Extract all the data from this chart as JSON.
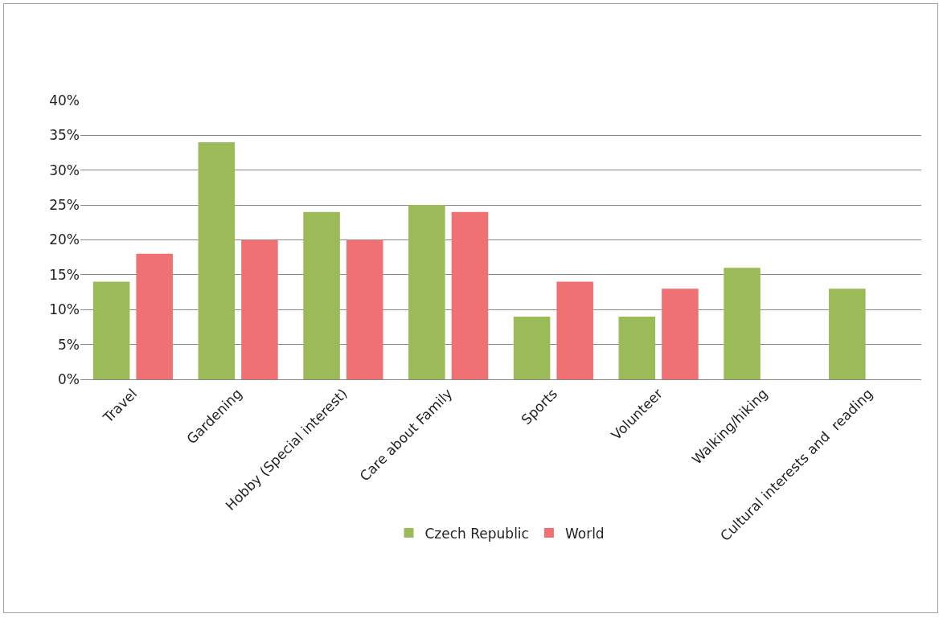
{
  "chart_data": {
    "type": "bar",
    "categories": [
      "Travel",
      "Gardening",
      "Hobby (Special interest)",
      "Care about Family",
      "Sports",
      "Volunteer",
      "Walking/hiking",
      "Cultural interests and  reading"
    ],
    "series": [
      {
        "name": "Czech Republic",
        "color": "#9bbb59",
        "values": [
          14,
          34,
          24,
          25,
          9,
          9,
          16,
          13
        ]
      },
      {
        "name": "World",
        "color": "#f07174",
        "values": [
          18,
          20,
          20,
          24,
          14,
          13,
          null,
          null
        ]
      }
    ],
    "ylim": [
      0,
      40
    ],
    "yticks": [
      {
        "value": 0,
        "label": "0%"
      },
      {
        "value": 5,
        "label": "5%"
      },
      {
        "value": 10,
        "label": "10%"
      },
      {
        "value": 15,
        "label": "15%"
      },
      {
        "value": 20,
        "label": "20%"
      },
      {
        "value": 25,
        "label": "25%"
      },
      {
        "value": 30,
        "label": "30%"
      },
      {
        "value": 35,
        "label": "35%"
      },
      {
        "value": 40,
        "label": "40%"
      }
    ],
    "grid": "y",
    "legend": "bottom"
  }
}
